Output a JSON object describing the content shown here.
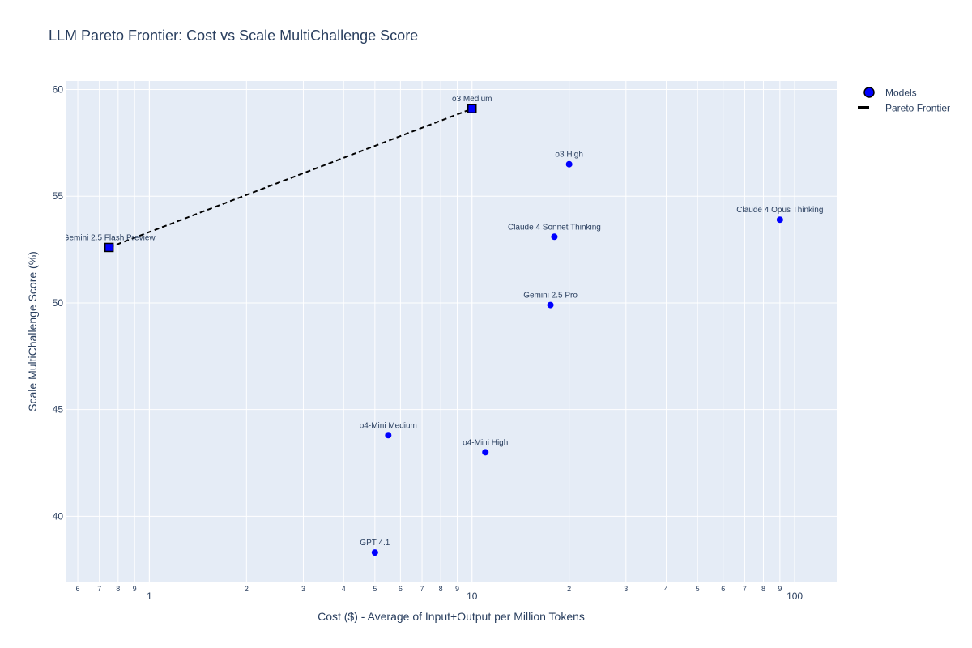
{
  "chart_data": {
    "type": "scatter",
    "title": "LLM Pareto Frontier: Cost vs Scale MultiChallenge Score",
    "xlabel": "Cost ($) - Average of Input+Output per Million Tokens",
    "ylabel": "Scale MultiChallenge Score (%)",
    "x_scale": "log",
    "xlim": [
      0.55,
      135
    ],
    "ylim": [
      36.9,
      60.4
    ],
    "x_ticks_major": [
      1,
      10,
      100
    ],
    "x_ticks_major_labels": [
      "1",
      "10",
      "100"
    ],
    "x_ticks_minor": [
      0.6,
      0.7,
      0.8,
      0.9,
      2,
      3,
      4,
      5,
      6,
      7,
      8,
      9,
      20,
      30,
      40,
      50,
      60,
      70,
      80,
      90
    ],
    "x_ticks_minor_labels": [
      "6",
      "7",
      "8",
      "9",
      "2",
      "3",
      "4",
      "5",
      "6",
      "7",
      "8",
      "9",
      "2",
      "3",
      "4",
      "5",
      "6",
      "7",
      "8",
      "9"
    ],
    "y_ticks": [
      40,
      45,
      50,
      55,
      60
    ],
    "y_ticks_labels": [
      "40",
      "45",
      "50",
      "55",
      "60"
    ],
    "grid": true,
    "legend_position": "top-right",
    "series": [
      {
        "name": "Models",
        "marker": "circle",
        "color": "#0000ff",
        "points": [
          {
            "label": "o3 Medium",
            "x": 10.0,
            "y": 59.1
          },
          {
            "label": "o3 High",
            "x": 20.0,
            "y": 56.5
          },
          {
            "label": "Claude 4 Opus Thinking",
            "x": 90.0,
            "y": 53.9
          },
          {
            "label": "Claude 4 Sonnet Thinking",
            "x": 18.0,
            "y": 53.1
          },
          {
            "label": "Gemini 2.5 Flash Preview",
            "x": 0.75,
            "y": 52.6
          },
          {
            "label": "Gemini 2.5 Pro",
            "x": 17.5,
            "y": 49.9
          },
          {
            "label": "o4-Mini Medium",
            "x": 5.5,
            "y": 43.8
          },
          {
            "label": "o4-Mini High",
            "x": 11.0,
            "y": 43.0
          },
          {
            "label": "GPT 4.1",
            "x": 5.0,
            "y": 38.3
          }
        ]
      },
      {
        "name": "Pareto Frontier",
        "marker": "square",
        "line": "dash",
        "color": "#000000",
        "points": [
          {
            "x": 0.75,
            "y": 52.6
          },
          {
            "x": 10.0,
            "y": 59.1
          }
        ]
      }
    ]
  },
  "colors": {
    "plot_bg": "#e5ecf6",
    "grid": "#ffffff",
    "text": "#2a3f5f",
    "marker": "#0000ff",
    "frontier": "#000000"
  }
}
